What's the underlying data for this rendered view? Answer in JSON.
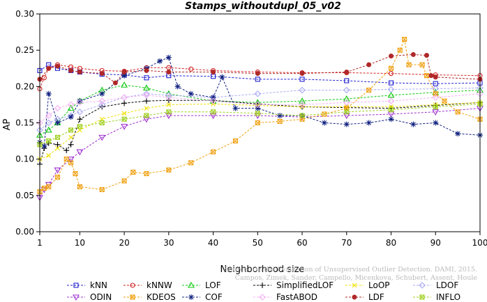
{
  "chart_data": {
    "type": "line",
    "title": "Stamps_withoutdupl_05_v02",
    "xlabel": "Neighborhood size",
    "ylabel": "AP",
    "xlim": [
      1,
      100
    ],
    "ylim": [
      0.0,
      0.3
    ],
    "xticks": [
      1,
      10,
      20,
      30,
      40,
      50,
      60,
      70,
      80,
      90,
      100
    ],
    "yticks": [
      "0.00",
      "0.05",
      "0.10",
      "0.15",
      "0.20",
      "0.25",
      "0.30"
    ],
    "grid": false,
    "legend_position": "bottom",
    "series": [
      {
        "name": "kNN",
        "color": "#1f1fd0",
        "marker": "square",
        "points": [
          [
            1,
            0.222
          ],
          [
            3,
            0.23
          ],
          [
            5,
            0.225
          ],
          [
            8,
            0.222
          ],
          [
            10,
            0.22
          ],
          [
            15,
            0.217
          ],
          [
            20,
            0.216
          ],
          [
            25,
            0.212
          ],
          [
            30,
            0.215
          ],
          [
            40,
            0.214
          ],
          [
            50,
            0.21
          ],
          [
            60,
            0.21
          ],
          [
            70,
            0.208
          ],
          [
            80,
            0.205
          ],
          [
            90,
            0.204
          ],
          [
            100,
            0.205
          ]
        ]
      },
      {
        "name": "kNNW",
        "color": "#d02020",
        "marker": "circle",
        "points": [
          [
            1,
            0.197
          ],
          [
            2,
            0.212
          ],
          [
            3,
            0.225
          ],
          [
            5,
            0.23
          ],
          [
            8,
            0.227
          ],
          [
            10,
            0.225
          ],
          [
            15,
            0.222
          ],
          [
            20,
            0.221
          ],
          [
            25,
            0.226
          ],
          [
            30,
            0.226
          ],
          [
            35,
            0.224
          ],
          [
            40,
            0.222
          ],
          [
            50,
            0.22
          ],
          [
            60,
            0.219
          ],
          [
            70,
            0.219
          ],
          [
            80,
            0.218
          ],
          [
            90,
            0.216
          ],
          [
            100,
            0.215
          ]
        ]
      },
      {
        "name": "LOF",
        "color": "#10c810",
        "marker": "triangle",
        "points": [
          [
            1,
            0.133
          ],
          [
            3,
            0.14
          ],
          [
            5,
            0.15
          ],
          [
            8,
            0.17
          ],
          [
            10,
            0.18
          ],
          [
            15,
            0.195
          ],
          [
            20,
            0.202
          ],
          [
            25,
            0.198
          ],
          [
            30,
            0.19
          ],
          [
            40,
            0.18
          ],
          [
            50,
            0.178
          ],
          [
            60,
            0.18
          ],
          [
            70,
            0.183
          ],
          [
            80,
            0.188
          ],
          [
            90,
            0.192
          ],
          [
            100,
            0.195
          ]
        ]
      },
      {
        "name": "SimplifiedLOF",
        "color": "#000000",
        "marker": "plus",
        "points": [
          [
            1,
            0.093
          ],
          [
            2,
            0.115
          ],
          [
            3,
            0.122
          ],
          [
            5,
            0.12
          ],
          [
            7,
            0.112
          ],
          [
            8,
            0.12
          ],
          [
            10,
            0.155
          ],
          [
            15,
            0.172
          ],
          [
            20,
            0.177
          ],
          [
            25,
            0.18
          ],
          [
            30,
            0.181
          ],
          [
            40,
            0.181
          ],
          [
            50,
            0.176
          ],
          [
            60,
            0.172
          ],
          [
            70,
            0.171
          ],
          [
            80,
            0.17
          ],
          [
            90,
            0.174
          ],
          [
            100,
            0.178
          ]
        ]
      },
      {
        "name": "LoOP",
        "color": "#f0e000",
        "marker": "x",
        "points": [
          [
            1,
            0.1
          ],
          [
            3,
            0.105
          ],
          [
            5,
            0.115
          ],
          [
            8,
            0.13
          ],
          [
            10,
            0.14
          ],
          [
            15,
            0.155
          ],
          [
            20,
            0.163
          ],
          [
            25,
            0.17
          ],
          [
            30,
            0.175
          ],
          [
            40,
            0.176
          ],
          [
            50,
            0.174
          ],
          [
            60,
            0.172
          ],
          [
            70,
            0.172
          ],
          [
            80,
            0.172
          ],
          [
            90,
            0.175
          ],
          [
            100,
            0.178
          ]
        ]
      },
      {
        "name": "LDOF",
        "color": "#a8a8f4",
        "marker": "diamond",
        "points": [
          [
            1,
            0.14
          ],
          [
            3,
            0.15
          ],
          [
            5,
            0.155
          ],
          [
            8,
            0.16
          ],
          [
            10,
            0.165
          ],
          [
            15,
            0.175
          ],
          [
            20,
            0.185
          ],
          [
            25,
            0.19
          ],
          [
            30,
            0.188
          ],
          [
            40,
            0.185
          ],
          [
            50,
            0.19
          ],
          [
            60,
            0.195
          ],
          [
            70,
            0.195
          ],
          [
            80,
            0.196
          ],
          [
            90,
            0.197
          ],
          [
            100,
            0.198
          ]
        ]
      },
      {
        "name": "ODIN",
        "color": "#a030d0",
        "marker": "triangle-down",
        "points": [
          [
            1,
            0.047
          ],
          [
            2,
            0.058
          ],
          [
            3,
            0.065
          ],
          [
            5,
            0.085
          ],
          [
            8,
            0.1
          ],
          [
            10,
            0.11
          ],
          [
            15,
            0.13
          ],
          [
            20,
            0.145
          ],
          [
            25,
            0.155
          ],
          [
            30,
            0.16
          ],
          [
            40,
            0.16
          ],
          [
            50,
            0.16
          ],
          [
            60,
            0.158
          ],
          [
            70,
            0.16
          ],
          [
            80,
            0.162
          ],
          [
            90,
            0.165
          ],
          [
            100,
            0.17
          ]
        ]
      },
      {
        "name": "KDEOS",
        "color": "#f0a010",
        "marker": "square-x",
        "points": [
          [
            1,
            0.055
          ],
          [
            2,
            0.06
          ],
          [
            3,
            0.062
          ],
          [
            5,
            0.075
          ],
          [
            7,
            0.1
          ],
          [
            8,
            0.095
          ],
          [
            9,
            0.08
          ],
          [
            10,
            0.062
          ],
          [
            15,
            0.058
          ],
          [
            20,
            0.07
          ],
          [
            22,
            0.082
          ],
          [
            25,
            0.08
          ],
          [
            30,
            0.085
          ],
          [
            35,
            0.095
          ],
          [
            40,
            0.11
          ],
          [
            45,
            0.125
          ],
          [
            50,
            0.15
          ],
          [
            55,
            0.152
          ],
          [
            60,
            0.155
          ],
          [
            65,
            0.162
          ],
          [
            70,
            0.17
          ],
          [
            75,
            0.195
          ],
          [
            80,
            0.225
          ],
          [
            82,
            0.25
          ],
          [
            83,
            0.265
          ],
          [
            84,
            0.23
          ],
          [
            87,
            0.23
          ],
          [
            88,
            0.215
          ],
          [
            90,
            0.19
          ],
          [
            92,
            0.18
          ],
          [
            95,
            0.165
          ],
          [
            100,
            0.155
          ]
        ]
      },
      {
        "name": "COF",
        "color": "#102080",
        "marker": "asterisk",
        "points": [
          [
            1,
            0.123
          ],
          [
            2,
            0.118
          ],
          [
            3,
            0.19
          ],
          [
            5,
            0.15
          ],
          [
            8,
            0.158
          ],
          [
            10,
            0.18
          ],
          [
            15,
            0.19
          ],
          [
            20,
            0.215
          ],
          [
            25,
            0.225
          ],
          [
            28,
            0.235
          ],
          [
            30,
            0.24
          ],
          [
            32,
            0.2
          ],
          [
            35,
            0.19
          ],
          [
            40,
            0.185
          ],
          [
            42,
            0.213
          ],
          [
            45,
            0.17
          ],
          [
            50,
            0.17
          ],
          [
            55,
            0.16
          ],
          [
            60,
            0.16
          ],
          [
            65,
            0.15
          ],
          [
            70,
            0.148
          ],
          [
            75,
            0.15
          ],
          [
            80,
            0.155
          ],
          [
            85,
            0.148
          ],
          [
            90,
            0.15
          ],
          [
            95,
            0.135
          ],
          [
            100,
            0.133
          ]
        ]
      },
      {
        "name": "FastABOD",
        "color": "#f4b0f4",
        "marker": "diamond",
        "points": [
          [
            1,
            0.15
          ],
          [
            3,
            0.16
          ],
          [
            5,
            0.17
          ],
          [
            8,
            0.175
          ],
          [
            10,
            0.178
          ],
          [
            15,
            0.18
          ],
          [
            20,
            0.185
          ],
          [
            25,
            0.188
          ],
          [
            30,
            0.185
          ],
          [
            40,
            0.18
          ],
          [
            50,
            0.175
          ],
          [
            60,
            0.175
          ],
          [
            70,
            0.178
          ],
          [
            80,
            0.18
          ],
          [
            90,
            0.185
          ],
          [
            100,
            0.19
          ]
        ]
      },
      {
        "name": "LDF",
        "color": "#b02828",
        "marker": "circle-filled",
        "points": [
          [
            1,
            0.21
          ],
          [
            3,
            0.225
          ],
          [
            5,
            0.228
          ],
          [
            8,
            0.222
          ],
          [
            10,
            0.22
          ],
          [
            15,
            0.218
          ],
          [
            18,
            0.205
          ],
          [
            20,
            0.22
          ],
          [
            25,
            0.222
          ],
          [
            30,
            0.22
          ],
          [
            40,
            0.22
          ],
          [
            50,
            0.218
          ],
          [
            60,
            0.218
          ],
          [
            70,
            0.22
          ],
          [
            75,
            0.23
          ],
          [
            80,
            0.242
          ],
          [
            85,
            0.244
          ],
          [
            88,
            0.243
          ],
          [
            89,
            0.215
          ],
          [
            90,
            0.213
          ],
          [
            100,
            0.21
          ]
        ]
      },
      {
        "name": "INFLO",
        "color": "#a0d020",
        "marker": "square-x",
        "points": [
          [
            1,
            0.12
          ],
          [
            3,
            0.125
          ],
          [
            5,
            0.13
          ],
          [
            8,
            0.14
          ],
          [
            10,
            0.145
          ],
          [
            15,
            0.15
          ],
          [
            20,
            0.155
          ],
          [
            25,
            0.16
          ],
          [
            30,
            0.165
          ],
          [
            40,
            0.165
          ],
          [
            50,
            0.163
          ],
          [
            60,
            0.16
          ],
          [
            70,
            0.165
          ],
          [
            80,
            0.168
          ],
          [
            90,
            0.172
          ],
          [
            100,
            0.176
          ]
        ]
      }
    ]
  },
  "watermark_lines": [
    "Source: On the Evaluation of Unsupervised Outlier Detection. DAMI, 2015.",
    "Campos, Zimek, Sander, Campello, Micenkova, Schubert, Assent, Houle"
  ]
}
